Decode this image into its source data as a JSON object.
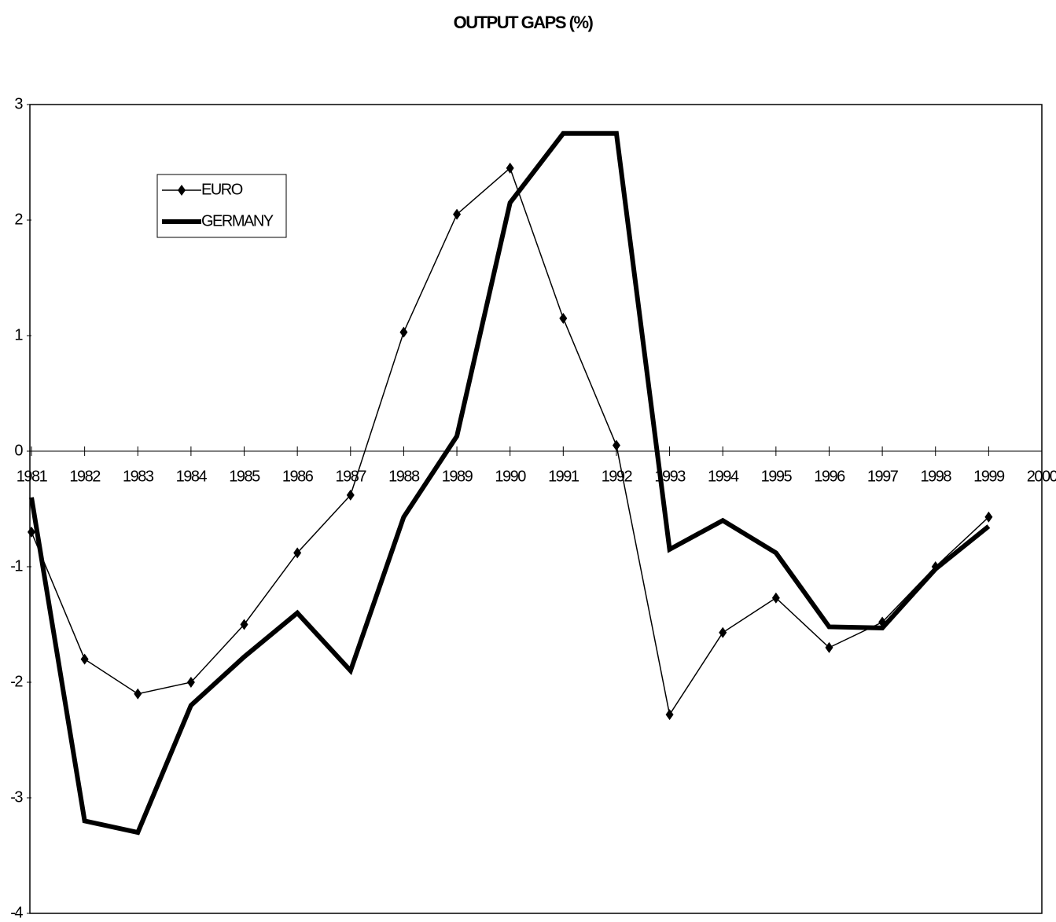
{
  "chart_data": {
    "type": "line",
    "title": "OUTPUT GAPS (%)",
    "x": [
      1981,
      1982,
      1983,
      1984,
      1985,
      1986,
      1987,
      1988,
      1989,
      1990,
      1991,
      1992,
      1993,
      1994,
      1995,
      1996,
      1997,
      1998,
      1999
    ],
    "series": [
      {
        "name": "EURO",
        "color": "#000000",
        "values": [
          -0.7,
          -1.8,
          -2.1,
          -2.0,
          -1.5,
          -0.88,
          -0.38,
          1.03,
          2.05,
          2.45,
          1.15,
          0.05,
          -2.28,
          -1.57,
          -1.27,
          -1.7,
          -1.48,
          -1.0,
          -0.57
        ]
      },
      {
        "name": "GERMANY",
        "color": "#000000",
        "values": [
          -0.4,
          -3.2,
          -3.3,
          -2.2,
          -1.78,
          -1.4,
          -1.9,
          -0.57,
          0.13,
          2.15,
          2.75,
          2.75,
          -0.85,
          -0.6,
          -0.88,
          -1.52,
          -1.53,
          -1.02,
          -0.65
        ]
      }
    ],
    "xlim": [
      1981,
      2000
    ],
    "xticks": [
      1981,
      1982,
      1983,
      1984,
      1985,
      1986,
      1987,
      1988,
      1989,
      1990,
      1991,
      1992,
      1993,
      1994,
      1995,
      1996,
      1997,
      1998,
      1999,
      2000
    ],
    "ylim": [
      -4,
      3
    ],
    "yticks": [
      -4,
      -3,
      -2,
      -1,
      0,
      1,
      2,
      3
    ],
    "legend": "upper left"
  }
}
